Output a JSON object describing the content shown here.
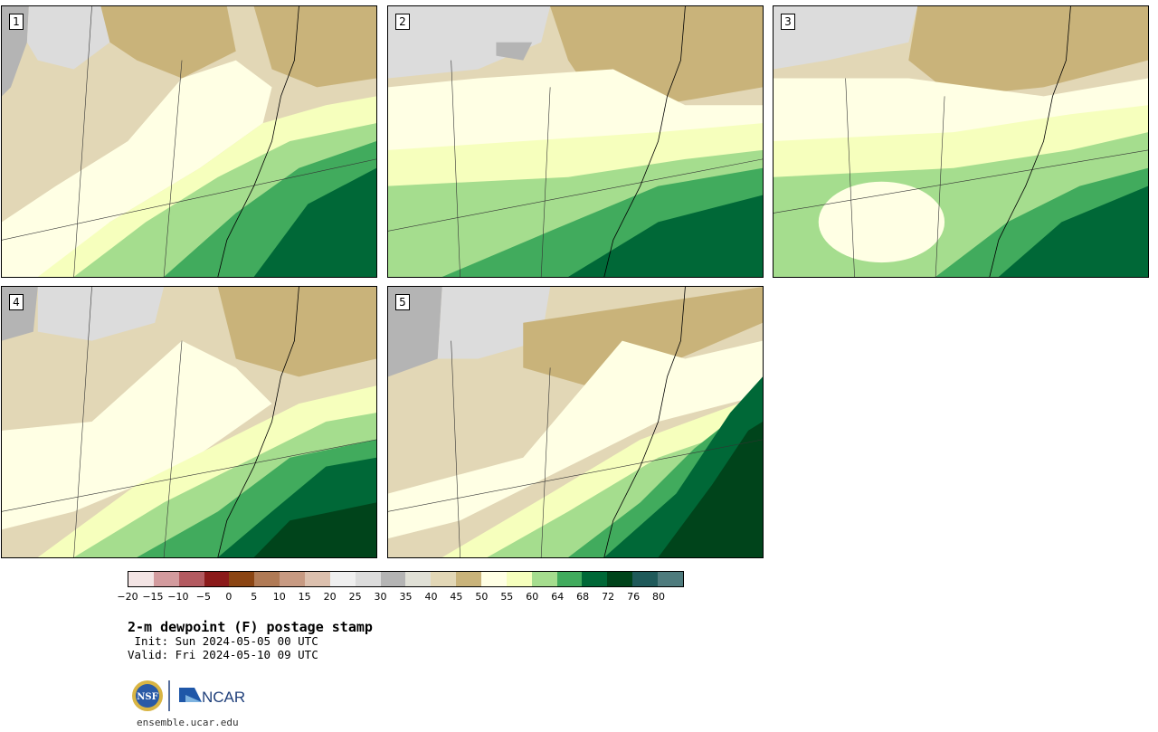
{
  "panels": [
    {
      "label": "1"
    },
    {
      "label": "2"
    },
    {
      "label": "3"
    },
    {
      "label": "4"
    },
    {
      "label": "5"
    }
  ],
  "colorbar": {
    "colors": [
      "#f3e4e4",
      "#d39b9e",
      "#b35a60",
      "#8b1a1a",
      "#8b4513",
      "#b07a55",
      "#c79a82",
      "#dcc0ae",
      "#efefef",
      "#dcdcdc",
      "#b4b4b4",
      "#e0e0d6",
      "#e2d7b6",
      "#c9b37a",
      "#ffffe4",
      "#f6ffbd",
      "#a5dd8e",
      "#41ab5d",
      "#006837",
      "#00441b",
      "#1f5a5a",
      "#4e7b7d"
    ],
    "ticks": [
      "−20",
      "−15",
      "−10",
      "−5",
      "0",
      "5",
      "10",
      "15",
      "20",
      "25",
      "30",
      "35",
      "40",
      "45",
      "50",
      "55",
      "60",
      "64",
      "68",
      "72",
      "76",
      "80"
    ]
  },
  "title": "2-m dewpoint (F) postage stamp",
  "init": " Init: Sun 2024-05-05 00 UTC",
  "valid": "Valid: Fri 2024-05-10 09 UTC",
  "logo": {
    "nsf_text": "NSF",
    "ncar_text": "NCAR"
  },
  "site": "ensemble.ucar.edu"
}
